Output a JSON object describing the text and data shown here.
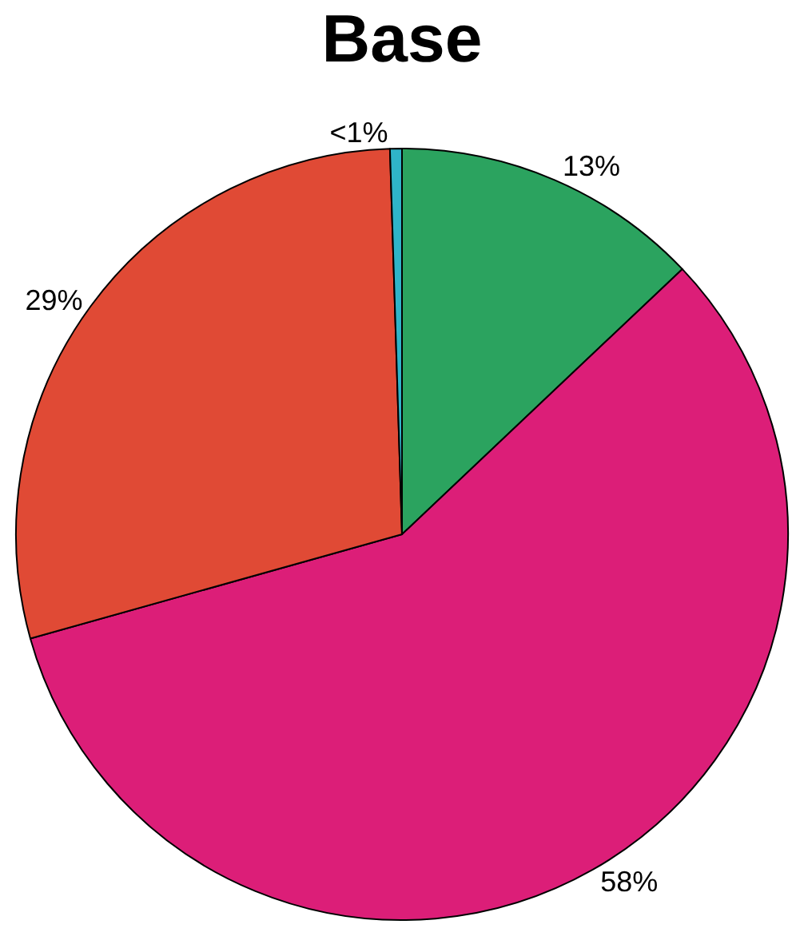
{
  "chart_data": {
    "type": "pie",
    "title": "Base",
    "categories": [
      null,
      null,
      null,
      null
    ],
    "values": [
      13,
      58,
      29,
      0.5
    ],
    "value_labels": [
      "13%",
      "58%",
      "29%",
      "<1%"
    ],
    "colors": [
      "#2ba35f",
      "#dc1e78",
      "#e04a35",
      "#2fb4c8"
    ],
    "legend": false
  }
}
